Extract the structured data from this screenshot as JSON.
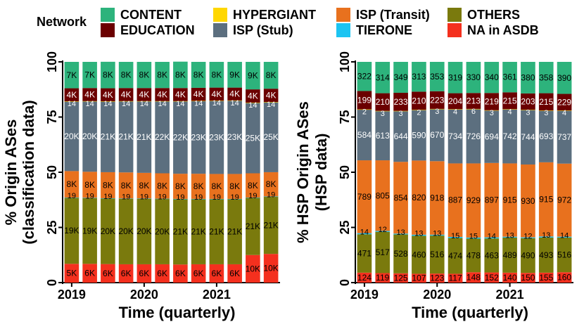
{
  "legend": {
    "title": "Network",
    "items": [
      {
        "key": "CONTENT",
        "label": "CONTENT",
        "color": "#2DB37C"
      },
      {
        "key": "EDUCATION",
        "label": "EDUCATION",
        "color": "#6B0000"
      },
      {
        "key": "HYPERGIANT",
        "label": "HYPERGIANT",
        "color": "#FFD700"
      },
      {
        "key": "ISP_STUB",
        "label": "ISP (Stub)",
        "color": "#5C6F7F"
      },
      {
        "key": "ISP_TRANSIT",
        "label": "ISP (Transit)",
        "color": "#E8711E"
      },
      {
        "key": "TIERONE",
        "label": "TIERONE",
        "color": "#1CC4F2"
      },
      {
        "key": "OTHERS",
        "label": "OTHERS",
        "color": "#7A7A0D"
      },
      {
        "key": "NA",
        "label": "NA in ASDB",
        "color": "#F4301E"
      }
    ]
  },
  "chart_data": [
    {
      "type": "bar",
      "stacked": true,
      "ylabel": [
        "% Origin ASes",
        "(classification data)"
      ],
      "xlabel": "Time (quarterly)",
      "ylim": [
        0,
        100
      ],
      "yticks": [
        "0",
        "25",
        "50",
        "75",
        "100"
      ],
      "xticks": [
        {
          "label": "2019",
          "index": 0
        },
        {
          "label": "2020",
          "index": 4
        },
        {
          "label": "2021",
          "index": 8
        }
      ],
      "categories": [
        "Q1-19",
        "Q2-19",
        "Q3-19",
        "Q4-19",
        "Q1-20",
        "Q2-20",
        "Q3-20",
        "Q4-20",
        "Q1-21",
        "Q2-21",
        "Q3-21",
        "Q4-21"
      ],
      "series": [
        {
          "name": "NA in ASDB",
          "color": "#F4301E",
          "values": [
            8.5,
            8.5,
            8.4,
            8.3,
            8.3,
            8.3,
            8.2,
            8.3,
            8.3,
            8.3,
            12.5,
            13.0
          ],
          "labels": [
            "5K",
            "6K",
            "6K",
            "6K",
            "6K",
            "6K",
            "6K",
            "6K",
            "6K",
            "6K",
            "10K",
            "10K"
          ]
        },
        {
          "name": "OTHERS",
          "color": "#7A7A0D",
          "values": [
            30.0,
            29.9,
            29.8,
            29.8,
            29.8,
            29.7,
            29.7,
            29.6,
            29.6,
            29.6,
            26.0,
            26.0
          ],
          "labels": [
            "19K",
            "19K",
            "20K",
            "20K",
            "20K",
            "20K",
            "21K",
            "21K",
            "21K",
            "21K",
            "21K",
            "21K"
          ]
        },
        {
          "name": "TIERONE",
          "color": "#1CC4F2",
          "values": [
            0.02,
            0.02,
            0.02,
            0.02,
            0.02,
            0.02,
            0.02,
            0.02,
            0.02,
            0.02,
            0.02,
            0.02
          ],
          "labels": [
            "19",
            "19",
            "19",
            "19",
            "19",
            "19",
            "19",
            "19",
            "19",
            "19",
            "19",
            "19"
          ]
        },
        {
          "name": "ISP (Transit)",
          "color": "#E8711E",
          "values": [
            12.0,
            11.8,
            11.8,
            11.8,
            11.6,
            11.5,
            11.4,
            11.4,
            11.3,
            11.3,
            11.0,
            11.0
          ],
          "labels": [
            "8K",
            "8K",
            "8K",
            "8K",
            "8K",
            "8K",
            "8K",
            "8K",
            "8K",
            "8K",
            "8K",
            "8K"
          ]
        },
        {
          "name": "ISP (Stub)",
          "color": "#5C6F7F",
          "values": [
            31.6,
            32.0,
            32.1,
            32.3,
            32.5,
            32.7,
            32.9,
            33.0,
            33.2,
            33.3,
            32.0,
            31.8
          ],
          "labels": [
            "20K",
            "20K",
            "21K",
            "21K",
            "21K",
            "22K",
            "22K",
            "23K",
            "23K",
            "23K",
            "25K",
            "25K"
          ]
        },
        {
          "name": "HYPERGIANT",
          "color": "#FFD700",
          "values": [
            0.02,
            0.02,
            0.02,
            0.02,
            0.02,
            0.02,
            0.02,
            0.02,
            0.02,
            0.02,
            0.02,
            0.02
          ],
          "labels": [
            "14",
            "14",
            "14",
            "14",
            "14",
            "14",
            "14",
            "14",
            "14",
            "14",
            "14",
            "14"
          ]
        },
        {
          "name": "EDUCATION",
          "color": "#6B0000",
          "values": [
            5.9,
            5.9,
            5.9,
            5.9,
            5.9,
            5.9,
            5.9,
            5.9,
            5.9,
            5.8,
            6.0,
            6.0
          ],
          "labels": [
            "4K",
            "4K",
            "4K",
            "4K",
            "4K",
            "4K",
            "4K",
            "4K",
            "4K",
            "4K",
            "4K",
            "4K"
          ]
        },
        {
          "name": "CONTENT",
          "color": "#2DB37C",
          "values": [
            11.96,
            11.86,
            12.0,
            11.86,
            11.86,
            11.86,
            11.96,
            11.76,
            11.66,
            11.66,
            12.46,
            12.16
          ],
          "labels": [
            "7K",
            "7K",
            "8K",
            "8K",
            "8K",
            "8K",
            "8K",
            "8K",
            "8K",
            "9K",
            "9K",
            "8K"
          ]
        }
      ]
    },
    {
      "type": "bar",
      "stacked": true,
      "ylabel": [
        "% HSP Origin ASes",
        "(HSP data)"
      ],
      "xlabel": "Time (quarterly)",
      "ylim": [
        0,
        100
      ],
      "yticks": [
        "0",
        "25",
        "50",
        "75",
        "100"
      ],
      "xticks": [
        {
          "label": "2019",
          "index": 0
        },
        {
          "label": "2020",
          "index": 4
        },
        {
          "label": "2021",
          "index": 8
        }
      ],
      "categories": [
        "Q1-19",
        "Q2-19",
        "Q3-19",
        "Q4-19",
        "Q1-20",
        "Q2-20",
        "Q3-20",
        "Q4-20",
        "Q1-21",
        "Q2-21",
        "Q3-21",
        "Q4-21"
      ],
      "series": [
        {
          "name": "NA in ASDB",
          "color": "#F4301E",
          "values": [
            4.5,
            4.3,
            4.2,
            4.0,
            4.1,
            4.0,
            4.7,
            4.6,
            4.5,
            4.4,
            4.5,
            4.7
          ],
          "labels": [
            "124",
            "119",
            "125",
            "107",
            "123",
            "117",
            "148",
            "152",
            "140",
            "150",
            "155",
            "160"
          ]
        },
        {
          "name": "OTHERS",
          "color": "#7A7A0D",
          "values": [
            17.4,
            18.7,
            17.6,
            17.2,
            17.2,
            16.2,
            15.2,
            15.4,
            15.9,
            15.7,
            15.9,
            15.7
          ],
          "labels": [
            "471",
            "517",
            "528",
            "460",
            "516",
            "474",
            "478",
            "463",
            "489",
            "490",
            "493",
            "516"
          ]
        },
        {
          "name": "TIERONE",
          "color": "#1CC4F2",
          "values": [
            0.5,
            0.4,
            0.4,
            0.5,
            0.4,
            0.5,
            0.5,
            0.5,
            0.4,
            0.4,
            0.5,
            0.4
          ],
          "labels": [
            "14",
            "12",
            "13",
            "13",
            "13",
            "15",
            "15",
            "14",
            "13",
            "12",
            "13",
            "14"
          ]
        },
        {
          "name": "ISP (Transit)",
          "color": "#E8711E",
          "values": [
            33.0,
            32.0,
            32.5,
            33.6,
            33.3,
            33.3,
            33.6,
            33.7,
            33.2,
            33.0,
            33.6,
            33.1
          ],
          "labels": [
            "789",
            "805",
            "854",
            "820",
            "918",
            "887",
            "929",
            "897",
            "915",
            "930",
            "915",
            "972"
          ]
        },
        {
          "name": "ISP (Stub)",
          "color": "#5C6F7F",
          "values": [
            23.0,
            22.3,
            23.0,
            22.9,
            23.6,
            24.5,
            24.5,
            23.8,
            24.5,
            24.7,
            23.4,
            24.0
          ],
          "labels": [
            "584",
            "613",
            "644",
            "590",
            "670",
            "734",
            "726",
            "694",
            "742",
            "744",
            "693",
            "737"
          ]
        },
        {
          "name": "HYPERGIANT",
          "color": "#FFD700",
          "values": [
            0.1,
            0.1,
            0.1,
            0.1,
            0.1,
            0.1,
            0.2,
            0.1,
            0.1,
            0.1,
            0.1,
            0.1
          ],
          "labels": [
            "2",
            "3",
            "3",
            "2",
            "3",
            "4",
            "6",
            "3",
            "4",
            "3",
            "3",
            "4"
          ]
        },
        {
          "name": "EDUCATION",
          "color": "#6B0000",
          "values": [
            8.3,
            8.0,
            8.2,
            8.2,
            8.0,
            7.2,
            7.2,
            7.8,
            7.6,
            7.4,
            7.8,
            7.5
          ],
          "labels": [
            "199",
            "210",
            "233",
            "210",
            "223",
            "204",
            "213",
            "219",
            "215",
            "203",
            "215",
            "229"
          ]
        },
        {
          "name": "CONTENT",
          "color": "#2DB37C",
          "values": [
            13.2,
            14.2,
            14.0,
            13.5,
            13.3,
            14.2,
            14.1,
            14.1,
            13.8,
            14.3,
            14.2,
            14.5
          ],
          "labels": [
            "322",
            "314",
            "349",
            "313",
            "353",
            "319",
            "330",
            "340",
            "361",
            "380",
            "358",
            "390"
          ]
        }
      ]
    }
  ]
}
